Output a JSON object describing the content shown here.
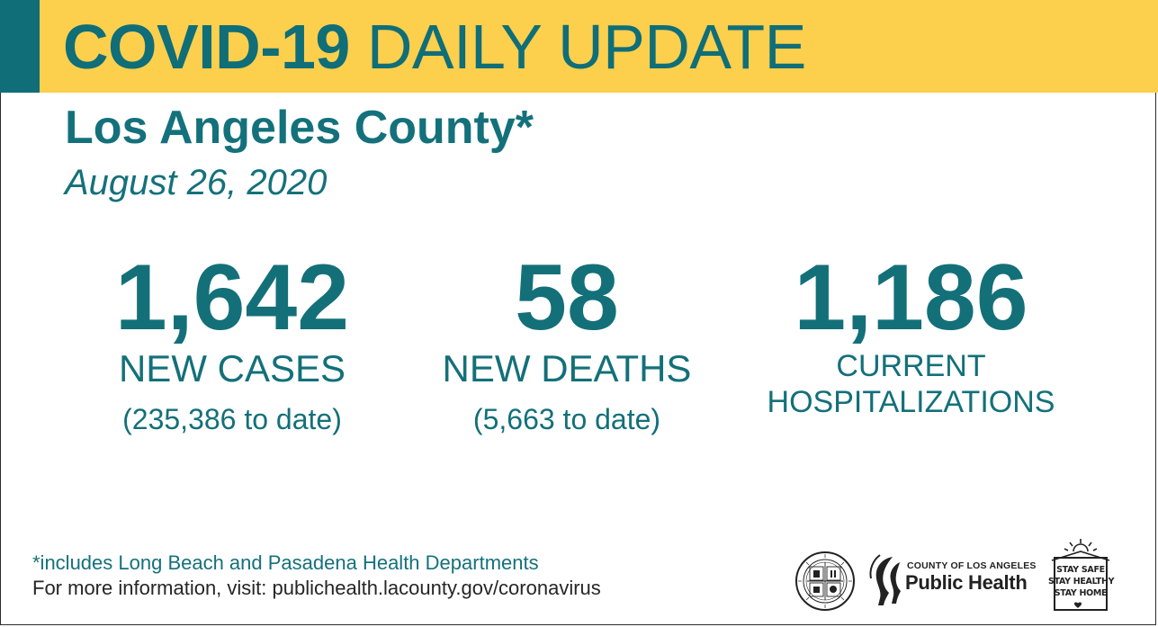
{
  "banner": {
    "title_bold": "COVID-19",
    "title_light": "DAILY UPDATE"
  },
  "header": {
    "county": "Los Angeles County*",
    "date": "August 26, 2020"
  },
  "stats": {
    "cases": {
      "value": "1,642",
      "label": "NEW CASES",
      "to_date": "(235,386 to date)"
    },
    "deaths": {
      "value": "58",
      "label": "NEW DEATHS",
      "to_date": "(5,663 to date)"
    },
    "hospitalizations": {
      "value": "1,186",
      "label_line1": "CURRENT",
      "label_line2": "HOSPITALIZATIONS"
    }
  },
  "footer": {
    "footnote": "*includes Long Beach and Pasadena Health Departments",
    "more_info": "For more information, visit: publichealth.lacounty.gov/coronavirus"
  },
  "logos": {
    "public_health_small": "COUNTY OF LOS ANGELES",
    "public_health_big": "Public Health",
    "stay_line1": "STAY SAFE",
    "stay_line2": "STAY HEALTHY",
    "stay_line3": "STAY HOME",
    "seal_text": "COUNTY OF LOS ANGELES · CALIFORNIA"
  },
  "colors": {
    "teal": "#0f6e78",
    "banner_yellow": "#fccf4d"
  },
  "icons": [
    "county-seal-icon",
    "public-health-logo-icon",
    "stay-safe-house-icon"
  ]
}
